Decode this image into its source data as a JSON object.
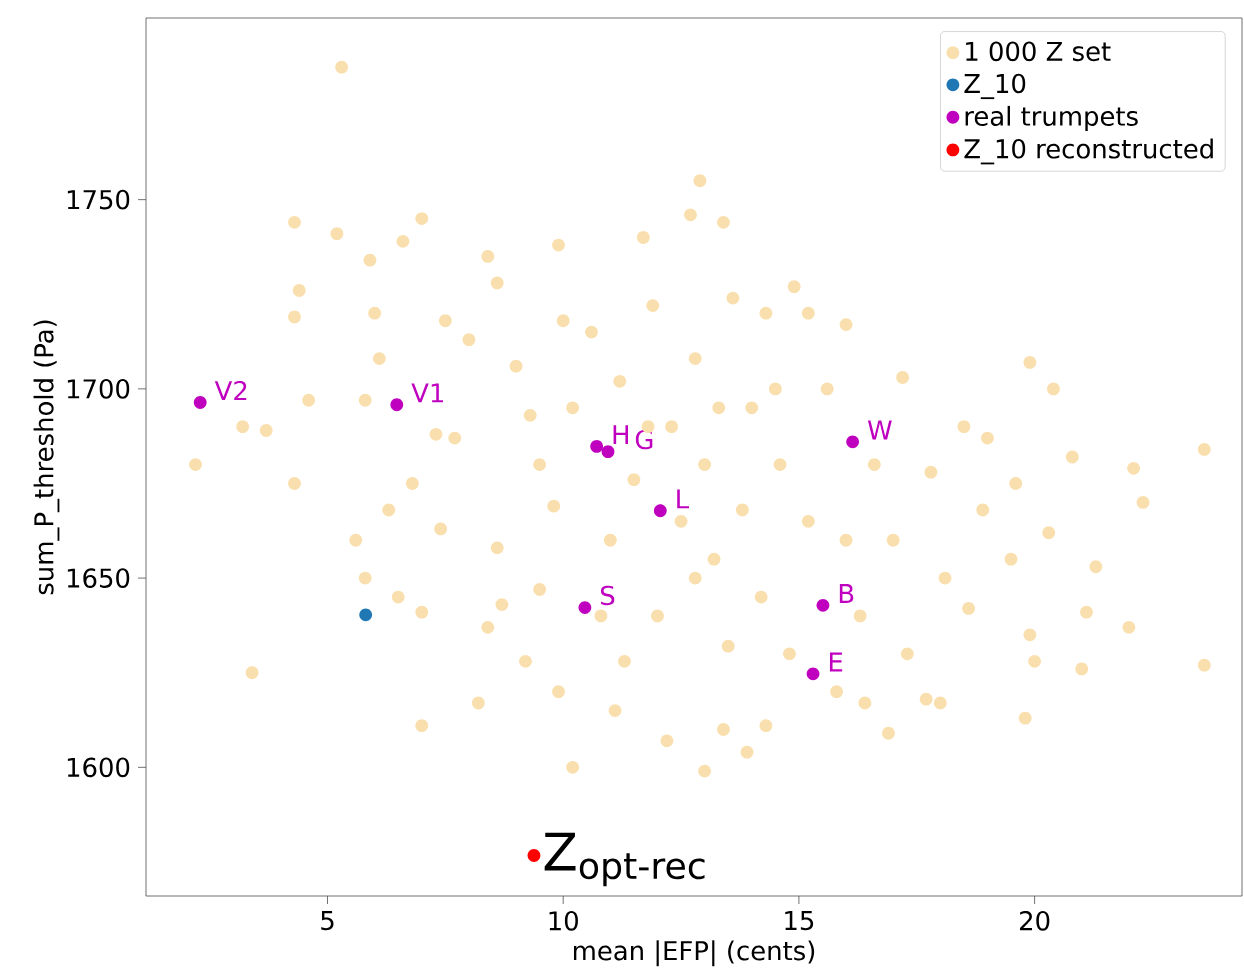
{
  "chart_data": {
    "type": "scatter",
    "xlabel": "mean |EFP| (cents)",
    "ylabel": "sum_P_threshold (Pa)",
    "xlim": [
      1.15,
      24.4
    ],
    "ylim": [
      1566,
      1798
    ],
    "xticks": [
      5,
      10,
      15,
      20
    ],
    "yticks": [
      1600,
      1650,
      1700,
      1750
    ],
    "marker": "circle",
    "legend": "top right",
    "series": [
      {
        "name": "1 000 Z set",
        "color": "#fadfae",
        "x": [
          5.3,
          4.3,
          5.2,
          6.6,
          7.0,
          11.7,
          12.9,
          12.7,
          13.4,
          9.9,
          14.9,
          15.2,
          16.0,
          17.2,
          19.9,
          20.4,
          22.1,
          22.3,
          23.6,
          23.6,
          21.1,
          21.0,
          22.0,
          19.8,
          20.0,
          17.7,
          18.0,
          16.9,
          16.4,
          14.3,
          13.4,
          13.9,
          12.2,
          13.0,
          10.2,
          11.1,
          9.9,
          8.2,
          7.0,
          3.4,
          4.3,
          2.2,
          3.2,
          3.7,
          4.6,
          4.3,
          4.4,
          5.9,
          6.0,
          6.1,
          5.8,
          5.6,
          5.8,
          6.3,
          6.5,
          7.0,
          7.4,
          7.7,
          7.5,
          8.0,
          8.4,
          8.6,
          9.0,
          9.3,
          8.6,
          8.7,
          8.4,
          9.2,
          9.5,
          9.8,
          10.2,
          10.6,
          11.2,
          11.5,
          11.0,
          10.8,
          11.3,
          12.0,
          12.3,
          12.8,
          13.0,
          13.2,
          12.8,
          13.5,
          13.8,
          14.0,
          14.3,
          14.6,
          14.2,
          14.8,
          15.2,
          15.6,
          16.0,
          16.3,
          16.6,
          17.0,
          17.3,
          17.8,
          18.1,
          18.5,
          18.6,
          18.9,
          19.0,
          19.5,
          19.6,
          19.9,
          20.3,
          21.3,
          20.8,
          11.9,
          13.6,
          10.0,
          7.3,
          6.8,
          15.8,
          14.5,
          12.5,
          11.8,
          13.3,
          9.5
        ],
        "values": [
          1785,
          1744,
          1741,
          1739,
          1745,
          1740,
          1755,
          1746,
          1744,
          1738,
          1727,
          1720,
          1717,
          1703,
          1707,
          1700,
          1679,
          1670,
          1684,
          1627,
          1641,
          1626,
          1637,
          1613,
          1628,
          1618,
          1617,
          1609,
          1617,
          1611,
          1610,
          1604,
          1607,
          1599,
          1600,
          1615,
          1620,
          1617,
          1611,
          1625,
          1675,
          1680,
          1690,
          1689,
          1697,
          1719,
          1726,
          1734,
          1720,
          1708,
          1697,
          1660,
          1650,
          1668,
          1645,
          1641,
          1663,
          1687,
          1718,
          1713,
          1735,
          1728,
          1706,
          1693,
          1658,
          1643,
          1637,
          1628,
          1647,
          1669,
          1695,
          1715,
          1702,
          1676,
          1660,
          1640,
          1628,
          1640,
          1690,
          1708,
          1680,
          1655,
          1650,
          1632,
          1668,
          1695,
          1720,
          1680,
          1645,
          1630,
          1665,
          1700,
          1660,
          1640,
          1680,
          1660,
          1630,
          1678,
          1650,
          1690,
          1642,
          1668,
          1687,
          1655,
          1675,
          1635,
          1662,
          1653,
          1682,
          1722,
          1724,
          1718,
          1688,
          1675,
          1620,
          1700,
          1665,
          1690,
          1695,
          1680
        ]
      },
      {
        "name": "Z_10",
        "color": "#1f77b4",
        "x": [
          5.81
        ],
        "values": [
          1640.3
        ]
      },
      {
        "name": "real trumpets",
        "color": "#bf00bf",
        "x": [
          2.3,
          6.47,
          10.71,
          10.95,
          12.06,
          10.46,
          16.14,
          15.51,
          15.3
        ],
        "values": [
          1696.4,
          1695.8,
          1684.8,
          1683.4,
          1667.8,
          1642.2,
          1686.0,
          1642.8,
          1624.7
        ]
      },
      {
        "name": "Z_10 reconstructed",
        "color": "#ff0000",
        "x": [
          9.38
        ],
        "values": [
          1576.7
        ]
      }
    ],
    "annotations": [
      {
        "text": "V2",
        "x": 2.3,
        "y": 1696.4
      },
      {
        "text": "V1",
        "x": 6.47,
        "y": 1695.8
      },
      {
        "text": "H",
        "x": 10.71,
        "y": 1684.8
      },
      {
        "text": "G",
        "x": 10.95,
        "y": 1683.4
      },
      {
        "text": "L",
        "x": 12.06,
        "y": 1667.8
      },
      {
        "text": "S",
        "x": 10.46,
        "y": 1642.2
      },
      {
        "text": "W",
        "x": 16.14,
        "y": 1686.0
      },
      {
        "text": "B",
        "x": 15.51,
        "y": 1642.8
      },
      {
        "text": "E",
        "x": 15.3,
        "y": 1624.7
      },
      {
        "text": "Z$_{opt-rec}$",
        "x": 9.38,
        "y": 1576.7
      }
    ]
  }
}
